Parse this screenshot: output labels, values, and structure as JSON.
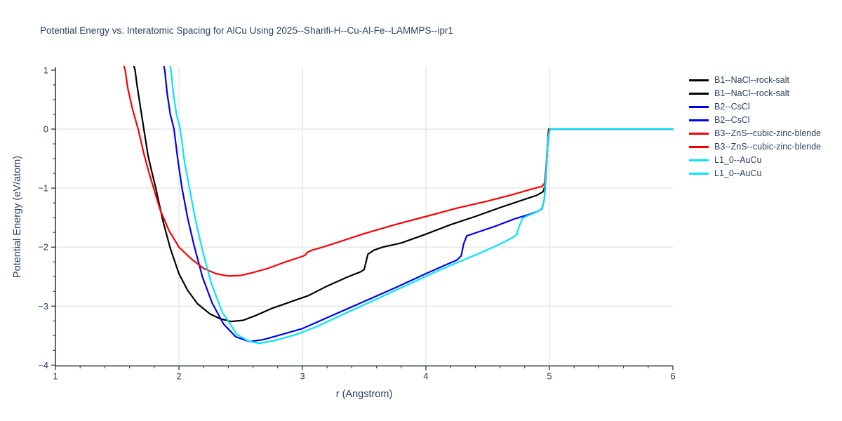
{
  "chart_data": {
    "type": "line",
    "title": "Potential Energy vs. Interatomic Spacing for AlCu Using 2025--Sharifi-H--Cu-Al-Fe--LAMMPS--ipr1",
    "xlabel": "r (Angstrom)",
    "ylabel": "Potential Energy (eV/atom)",
    "xlim": [
      1,
      6
    ],
    "ylim": [
      -4,
      1
    ],
    "grid_on": true,
    "legend_position": "right-outside",
    "colors": {
      "text": "#2a3f5f",
      "axis_line": "#2b3442",
      "grid": "#e5e5e5",
      "background": "#ffffff",
      "black": "#000000",
      "blue": "#0000f0",
      "red": "#fb0000",
      "cyan": "#00e5ff"
    },
    "x_ticks": [
      {
        "v": 1,
        "label": "1"
      },
      {
        "v": 2,
        "label": "2"
      },
      {
        "v": 3,
        "label": "3"
      },
      {
        "v": 4,
        "label": "4"
      },
      {
        "v": 5,
        "label": "5"
      },
      {
        "v": 6,
        "label": "6"
      }
    ],
    "y_ticks": [
      {
        "v": 1,
        "label": "1"
      },
      {
        "v": 0,
        "label": "0"
      },
      {
        "v": -1,
        "label": "−1"
      },
      {
        "v": -2,
        "label": "−2"
      },
      {
        "v": -3,
        "label": "−3"
      },
      {
        "v": -4,
        "label": "−4"
      }
    ],
    "x_minor": {
      "start": 1.2,
      "end": 5.8,
      "step": 0.2
    },
    "y_minor": {
      "start": -3.75,
      "end": 0.75,
      "step": 0.25
    },
    "grid_x_values": [
      2,
      3,
      4,
      5
    ],
    "grid_y_values": [
      0,
      -1,
      -2,
      -3
    ],
    "legend": {
      "entries": [
        {
          "label": "B1--NaCl--rock-salt",
          "color": "#000000"
        },
        {
          "label": "B1--NaCl--rock-salt",
          "color": "#000000"
        },
        {
          "label": "B2--CsCl",
          "color": "#0000f0"
        },
        {
          "label": "B2--CsCl",
          "color": "#0000f0"
        },
        {
          "label": "B3--ZnS--cubic-zinc-blende",
          "color": "#fb0000"
        },
        {
          "label": "B3--ZnS--cubic-zinc-blende",
          "color": "#fb0000"
        },
        {
          "label": "L1_0--AuCu",
          "color": "#00e5ff"
        },
        {
          "label": "L1_0--AuCu",
          "color": "#00e5ff"
        }
      ]
    },
    "series": [
      {
        "id": "b1-nacl-rock-salt",
        "name": "B1--NaCl--rock-salt",
        "color": "#000000",
        "min_point": {
          "r": 2.42,
          "E": -3.26
        },
        "points": [
          [
            1.625,
            1.15
          ],
          [
            1.645,
            1.0
          ],
          [
            1.66,
            0.75
          ],
          [
            1.69,
            0.35
          ],
          [
            1.716,
            0.0
          ],
          [
            1.75,
            -0.45
          ],
          [
            1.78,
            -0.72
          ],
          [
            1.8125,
            -1.0
          ],
          [
            1.87,
            -1.55
          ],
          [
            1.93,
            -2.02
          ],
          [
            2.0,
            -2.45
          ],
          [
            2.07,
            -2.73
          ],
          [
            2.15,
            -2.96
          ],
          [
            2.25,
            -3.13
          ],
          [
            2.33,
            -3.21
          ],
          [
            2.42,
            -3.26
          ],
          [
            2.52,
            -3.24
          ],
          [
            2.62,
            -3.16
          ],
          [
            2.75,
            -3.04
          ],
          [
            2.9,
            -2.93
          ],
          [
            3.05,
            -2.82
          ],
          [
            3.2,
            -2.66
          ],
          [
            3.36,
            -2.51
          ],
          [
            3.47,
            -2.42
          ],
          [
            3.5,
            -2.38
          ],
          [
            3.53,
            -2.12
          ],
          [
            3.58,
            -2.05
          ],
          [
            3.65,
            -2.0
          ],
          [
            3.8,
            -1.93
          ],
          [
            4.0,
            -1.78
          ],
          [
            4.2,
            -1.62
          ],
          [
            4.4,
            -1.48
          ],
          [
            4.6,
            -1.33
          ],
          [
            4.8,
            -1.19
          ],
          [
            4.9,
            -1.12
          ],
          [
            4.95,
            -1.06
          ],
          [
            4.965,
            -0.95
          ],
          [
            4.978,
            -0.55
          ],
          [
            4.99,
            -0.1
          ],
          [
            4.995,
            0.0
          ],
          [
            6.0,
            0.0
          ]
        ]
      },
      {
        "id": "b2-cscl",
        "name": "B2--CsCl",
        "color": "#0000f0",
        "min_point": {
          "r": 2.57,
          "E": -3.6
        },
        "points": [
          [
            1.87,
            1.15
          ],
          [
            1.885,
            1.0
          ],
          [
            1.905,
            0.6
          ],
          [
            1.93,
            0.25
          ],
          [
            1.96,
            0.0
          ],
          [
            1.99,
            -0.5
          ],
          [
            2.025,
            -1.0
          ],
          [
            2.07,
            -1.5
          ],
          [
            2.12,
            -1.95
          ],
          [
            2.19,
            -2.5
          ],
          [
            2.27,
            -2.95
          ],
          [
            2.36,
            -3.3
          ],
          [
            2.46,
            -3.52
          ],
          [
            2.57,
            -3.6
          ],
          [
            2.68,
            -3.57
          ],
          [
            2.8,
            -3.5
          ],
          [
            3.0,
            -3.38
          ],
          [
            3.25,
            -3.15
          ],
          [
            3.5,
            -2.92
          ],
          [
            3.75,
            -2.69
          ],
          [
            4.0,
            -2.45
          ],
          [
            4.15,
            -2.31
          ],
          [
            4.25,
            -2.22
          ],
          [
            4.285,
            -2.15
          ],
          [
            4.305,
            -1.95
          ],
          [
            4.33,
            -1.81
          ],
          [
            4.4,
            -1.76
          ],
          [
            4.57,
            -1.64
          ],
          [
            4.72,
            -1.52
          ],
          [
            4.83,
            -1.45
          ],
          [
            4.9,
            -1.4
          ],
          [
            4.94,
            -1.35
          ],
          [
            4.958,
            -1.2
          ],
          [
            4.972,
            -0.8
          ],
          [
            4.985,
            -0.3
          ],
          [
            4.998,
            -0.02
          ],
          [
            5.003,
            0.0
          ],
          [
            6.0,
            0.0
          ]
        ]
      },
      {
        "id": "b3-zns-cubic-zinc-blende",
        "name": "B3--ZnS--cubic-zinc-blende",
        "color": "#fb0000",
        "min_point": {
          "r": 2.43,
          "E": -2.49
        },
        "points": [
          [
            1.545,
            1.15
          ],
          [
            1.565,
            1.0
          ],
          [
            1.585,
            0.7
          ],
          [
            1.625,
            0.33
          ],
          [
            1.67,
            0.0
          ],
          [
            1.72,
            -0.45
          ],
          [
            1.755,
            -0.72
          ],
          [
            1.795,
            -1.0
          ],
          [
            1.85,
            -1.38
          ],
          [
            1.92,
            -1.72
          ],
          [
            2.0,
            -2.0
          ],
          [
            2.1,
            -2.2
          ],
          [
            2.2,
            -2.36
          ],
          [
            2.3,
            -2.45
          ],
          [
            2.4,
            -2.49
          ],
          [
            2.5,
            -2.48
          ],
          [
            2.6,
            -2.43
          ],
          [
            2.72,
            -2.36
          ],
          [
            2.85,
            -2.26
          ],
          [
            2.98,
            -2.17
          ],
          [
            3.02,
            -2.14
          ],
          [
            3.04,
            -2.09
          ],
          [
            3.08,
            -2.05
          ],
          [
            3.15,
            -2.01
          ],
          [
            3.3,
            -1.91
          ],
          [
            3.5,
            -1.77
          ],
          [
            3.75,
            -1.62
          ],
          [
            4.0,
            -1.48
          ],
          [
            4.25,
            -1.34
          ],
          [
            4.5,
            -1.22
          ],
          [
            4.7,
            -1.11
          ],
          [
            4.85,
            -1.02
          ],
          [
            4.94,
            -0.97
          ],
          [
            4.96,
            -0.92
          ],
          [
            4.973,
            -0.65
          ],
          [
            4.986,
            -0.25
          ],
          [
            4.996,
            -0.03
          ],
          [
            5.0,
            0.0
          ],
          [
            6.0,
            0.0
          ]
        ]
      },
      {
        "id": "l1-0-aucu",
        "name": "L1_0--AuCu",
        "color": "#00e5ff",
        "min_point": {
          "r": 2.65,
          "E": -3.63
        },
        "points": [
          [
            1.92,
            1.15
          ],
          [
            1.935,
            1.0
          ],
          [
            1.955,
            0.6
          ],
          [
            1.98,
            0.25
          ],
          [
            2.011,
            0.0
          ],
          [
            2.045,
            -0.55
          ],
          [
            2.085,
            -1.0
          ],
          [
            2.13,
            -1.5
          ],
          [
            2.19,
            -2.05
          ],
          [
            2.26,
            -2.6
          ],
          [
            2.35,
            -3.1
          ],
          [
            2.47,
            -3.48
          ],
          [
            2.56,
            -3.59
          ],
          [
            2.65,
            -3.63
          ],
          [
            2.78,
            -3.58
          ],
          [
            2.95,
            -3.48
          ],
          [
            3.1,
            -3.36
          ],
          [
            3.35,
            -3.12
          ],
          [
            3.6,
            -2.88
          ],
          [
            3.85,
            -2.64
          ],
          [
            4.1,
            -2.4
          ],
          [
            4.3,
            -2.22
          ],
          [
            4.45,
            -2.09
          ],
          [
            4.6,
            -1.95
          ],
          [
            4.7,
            -1.84
          ],
          [
            4.735,
            -1.79
          ],
          [
            4.755,
            -1.65
          ],
          [
            4.78,
            -1.52
          ],
          [
            4.82,
            -1.47
          ],
          [
            4.87,
            -1.43
          ],
          [
            4.91,
            -1.39
          ],
          [
            4.94,
            -1.34
          ],
          [
            4.958,
            -1.2
          ],
          [
            4.974,
            -0.7
          ],
          [
            4.99,
            -0.15
          ],
          [
            5.005,
            0.0
          ],
          [
            6.0,
            0.0
          ]
        ]
      }
    ]
  }
}
